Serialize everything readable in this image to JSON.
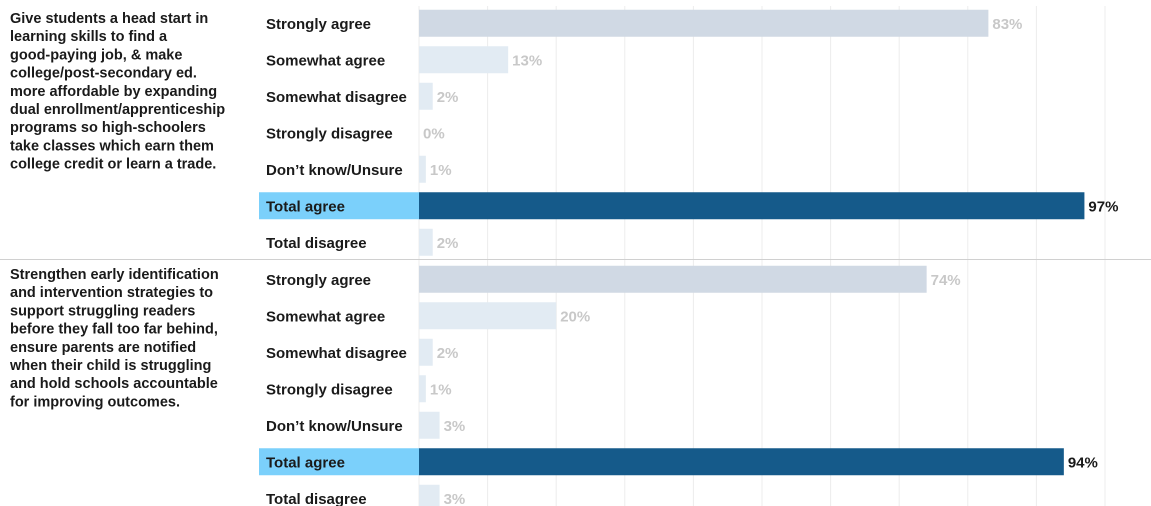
{
  "colors": {
    "strongly_agree": "#d0d9e4",
    "other": "#e2ebf3",
    "total_agree_bar": "#155a8a",
    "total_agree_highlight": "#7bd0fb",
    "value_muted": "#c8c8c8",
    "value_strong": "#1a1a1a"
  },
  "chart_data": {
    "type": "bar",
    "orientation": "horizontal",
    "xlim": [
      0,
      100
    ],
    "grid": true,
    "value_suffix": "%",
    "groups": [
      {
        "question": [
          "Give students a head start in",
          "learning skills to find a",
          "good-paying job, & make",
          "college/post-secondary ed.",
          "more affordable by expanding",
          "dual enrollment/apprenticeship",
          "programs so high-schoolers",
          "take classes which earn them",
          "college credit or learn a trade."
        ],
        "categories": [
          "Strongly agree",
          "Somewhat agree",
          "Somewhat disagree",
          "Strongly disagree",
          "Don’t know/Unsure",
          "Total agree",
          "Total disagree"
        ],
        "values": [
          83,
          13,
          2,
          0,
          1,
          97,
          2
        ],
        "labels": [
          "83%",
          "13%",
          "2%",
          "0%",
          "1%",
          "97%",
          "2%"
        ]
      },
      {
        "question": [
          "Strengthen early identification",
          "and intervention strategies to",
          "support struggling readers",
          "before they fall too far behind,",
          "ensure parents are notified",
          "when their child is struggling",
          "and hold schools accountable",
          "for improving outcomes."
        ],
        "categories": [
          "Strongly agree",
          "Somewhat agree",
          "Somewhat disagree",
          "Strongly disagree",
          "Don’t know/Unsure",
          "Total agree",
          "Total disagree"
        ],
        "values": [
          74,
          20,
          2,
          1,
          3,
          94,
          3
        ],
        "labels": [
          "74%",
          "20%",
          "2%",
          "1%",
          "3%",
          "94%",
          "3%"
        ]
      }
    ]
  }
}
